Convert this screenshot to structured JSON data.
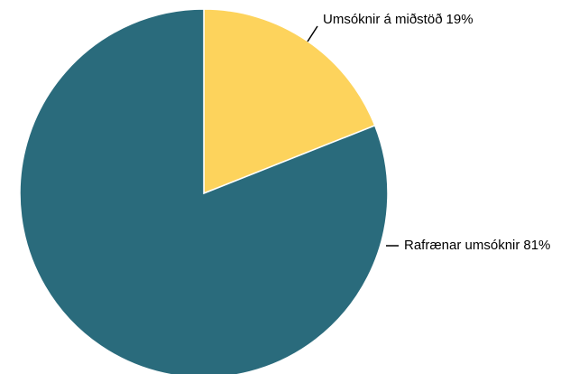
{
  "chart_data": {
    "type": "pie",
    "categories": [
      "Umsóknir á miðstöð",
      "Rafrænar umsóknir"
    ],
    "values": [
      19,
      81
    ],
    "value_labels": [
      "19%",
      "81%"
    ],
    "colors": [
      "#fdd35c",
      "#2a6b7c"
    ]
  }
}
